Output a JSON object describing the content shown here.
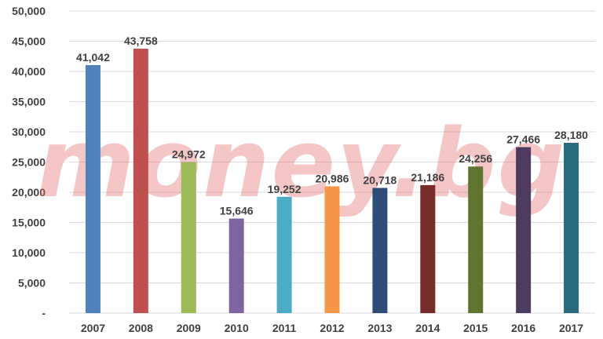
{
  "watermark": "money.bg",
  "chart_data": {
    "type": "bar",
    "title": "",
    "xlabel": "",
    "ylabel": "",
    "categories": [
      "2007",
      "2008",
      "2009",
      "2010",
      "2011",
      "2012",
      "2013",
      "2014",
      "2015",
      "2016",
      "2017"
    ],
    "values": [
      41042,
      43758,
      24972,
      15646,
      19252,
      20986,
      20718,
      21186,
      24256,
      27466,
      28180
    ],
    "value_labels": [
      "41,042",
      "43,758",
      "24,972",
      "15,646",
      "19,252",
      "20,986",
      "20,718",
      "21,186",
      "24,256",
      "27,466",
      "28,180"
    ],
    "colors": [
      "#4f81bd",
      "#c0504d",
      "#9bbb59",
      "#8064a2",
      "#4bacc6",
      "#f79646",
      "#2c4d75",
      "#772c2a",
      "#5f7530",
      "#4d3b62",
      "#276a7c"
    ],
    "ylim": [
      0,
      50000
    ],
    "yticks": [
      0,
      5000,
      10000,
      15000,
      20000,
      25000,
      30000,
      35000,
      40000,
      45000,
      50000
    ],
    "ytick_labels": [
      "-",
      "5,000",
      "10,000",
      "15,000",
      "20,000",
      "25,000",
      "30,000",
      "35,000",
      "40,000",
      "45,000",
      "50,000"
    ],
    "grid": true,
    "legend": "none"
  }
}
